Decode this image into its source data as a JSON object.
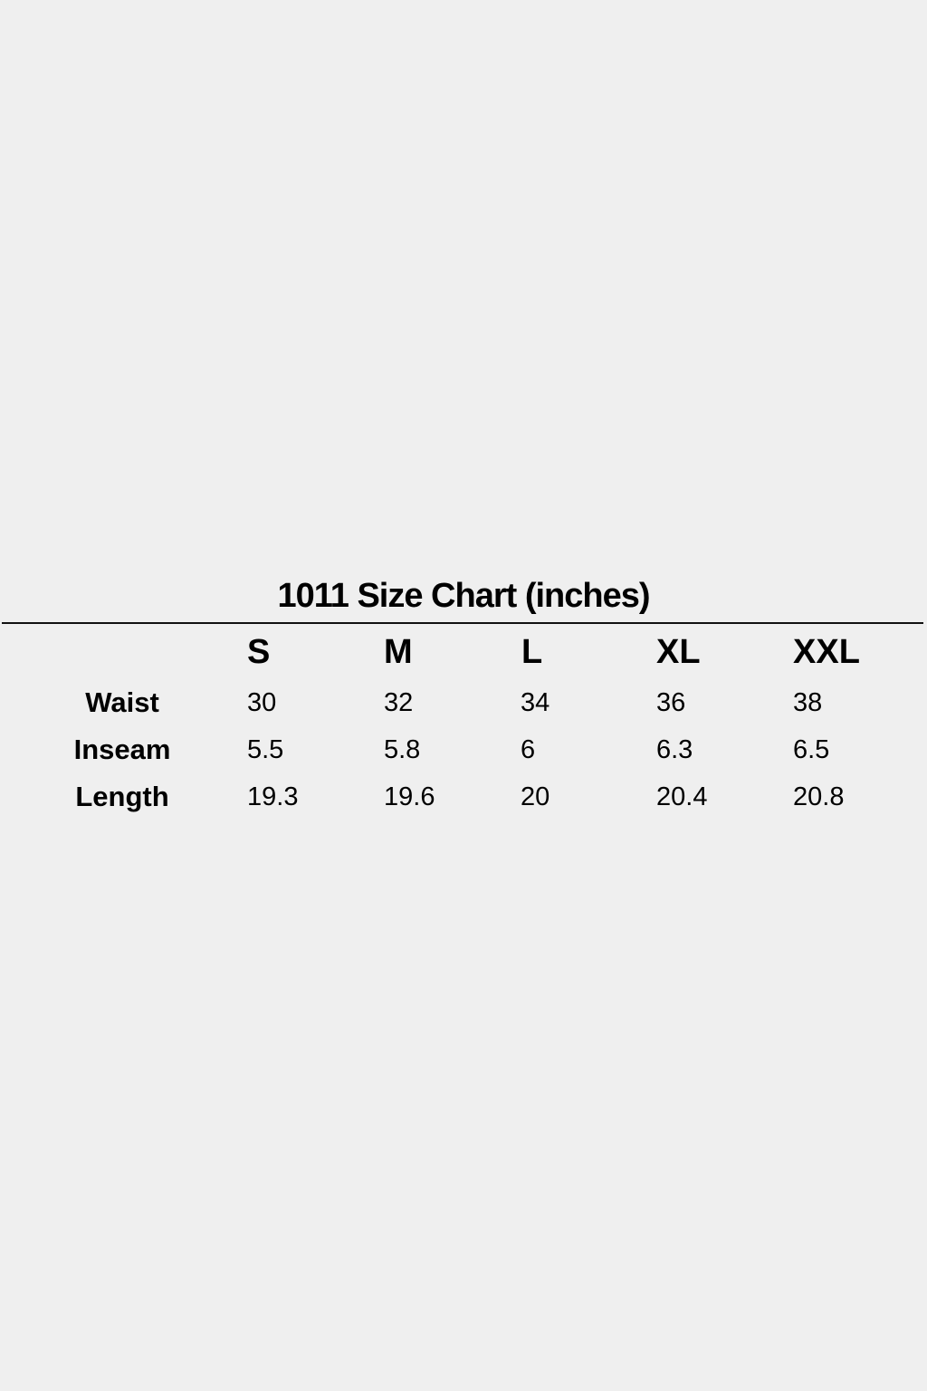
{
  "title": "1011 Size Chart (inches)",
  "sizes": [
    "S",
    "M",
    "L",
    "XL",
    "XXL"
  ],
  "rows": [
    {
      "label": "Waist",
      "values": [
        "30",
        "32",
        "34",
        "36",
        "38"
      ]
    },
    {
      "label": "Inseam",
      "values": [
        "5.5",
        "5.8",
        "6",
        "6.3",
        "6.5"
      ]
    },
    {
      "label": "Length",
      "values": [
        "19.3",
        "19.6",
        "20",
        "20.4",
        "20.8"
      ]
    }
  ]
}
